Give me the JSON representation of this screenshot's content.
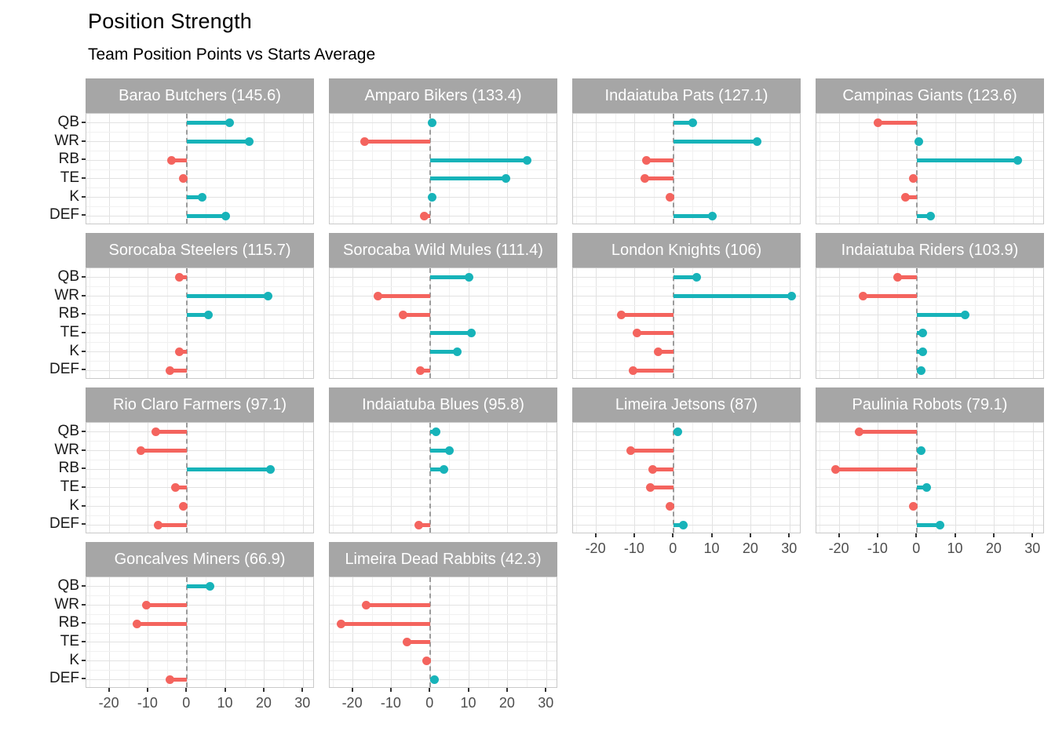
{
  "page": {
    "title": "Position Strength",
    "subtitle": "Team Position Points vs Starts Average"
  },
  "chart_data": {
    "type": "bar",
    "subtype": "horizontal-lollipop-facets",
    "title": "Position Strength",
    "subtitle": "Team Position Points vs Starts Average",
    "categories": [
      "QB",
      "WR",
      "RB",
      "TE",
      "K",
      "DEF"
    ],
    "x_axis": {
      "min": -26,
      "max": 33,
      "ticks": [
        -20,
        -10,
        0,
        10,
        20,
        30
      ],
      "tick_labels": [
        "-20",
        "-10",
        "0",
        "10",
        "20",
        "30"
      ],
      "minor_step": 5,
      "zero_reference_line": "dashed"
    },
    "legend": "none",
    "grid": "on",
    "colors": {
      "positive": "#17b3b9",
      "negative": "#f4645e",
      "strip_bg": "#a6a6a6",
      "strip_text": "#ffffff",
      "grid_major": "#e2e2e2",
      "grid_minor": "#f1f1f1",
      "zero_line": "#9b9b9b",
      "axis_text": "#4d4d4d",
      "category_text": "#1a1a1a"
    },
    "facets": [
      {
        "team": "Barao Butchers",
        "total": 145.6,
        "label": "Barao Butchers (145.6)",
        "values": [
          11,
          16,
          -4,
          -1,
          4,
          10
        ]
      },
      {
        "team": "Amparo Bikers",
        "total": 133.4,
        "label": "Amparo Bikers (133.4)",
        "values": [
          0.5,
          -17,
          25,
          19.5,
          0.5,
          -1.5
        ]
      },
      {
        "team": "Indaiatuba Pats",
        "total": 127.1,
        "label": "Indaiatuba Pats (127.1)",
        "values": [
          5,
          21.5,
          -7,
          -7.5,
          -1,
          10
        ]
      },
      {
        "team": "Campinas Giants",
        "total": 123.6,
        "label": "Campinas Giants (123.6)",
        "values": [
          -10,
          0.5,
          26,
          -1,
          -3,
          3.5
        ]
      },
      {
        "team": "Sorocaba Steelers",
        "total": 115.7,
        "label": "Sorocaba Steelers (115.7)",
        "values": [
          -2,
          21,
          5.5,
          null,
          -2,
          -4.5
        ]
      },
      {
        "team": "Sorocaba Wild Mules",
        "total": 111.4,
        "label": "Sorocaba Wild Mules (111.4)",
        "values": [
          10,
          -13.5,
          -7,
          10.5,
          7,
          -2.5
        ]
      },
      {
        "team": "London Knights",
        "total": 106,
        "label": "London Knights (106)",
        "values": [
          6,
          30.5,
          -13.5,
          -9.5,
          -4,
          -10.5
        ]
      },
      {
        "team": "Indaiatuba Riders",
        "total": 103.9,
        "label": "Indaiatuba Riders (103.9)",
        "values": [
          -5,
          -14,
          12.5,
          1.5,
          1.5,
          1
        ]
      },
      {
        "team": "Rio Claro Farmers",
        "total": 97.1,
        "label": "Rio Claro Farmers (97.1)",
        "values": [
          -8,
          -12,
          21.5,
          -3,
          -1,
          -7.5
        ]
      },
      {
        "team": "Indaiatuba Blues",
        "total": 95.8,
        "label": "Indaiatuba Blues (95.8)",
        "values": [
          1.5,
          5,
          3.5,
          null,
          null,
          -3
        ]
      },
      {
        "team": "Limeira Jetsons",
        "total": 87,
        "label": "Limeira Jetsons (87)",
        "values": [
          1,
          -11,
          -5.5,
          -6,
          -1,
          2.5
        ]
      },
      {
        "team": "Paulinia Robots",
        "total": 79.1,
        "label": "Paulinia Robots (79.1)",
        "values": [
          -15,
          1,
          -21,
          2.5,
          -1,
          6
        ]
      },
      {
        "team": "Goncalves Miners",
        "total": 66.9,
        "label": "Goncalves Miners (66.9)",
        "values": [
          6,
          -10.5,
          -13,
          null,
          null,
          -4.5
        ]
      },
      {
        "team": "Limeira Dead Rabbits",
        "total": 42.3,
        "label": "Limeira Dead Rabbits (42.3)",
        "values": [
          null,
          -16.5,
          -23,
          -6,
          -1,
          1
        ]
      }
    ]
  }
}
